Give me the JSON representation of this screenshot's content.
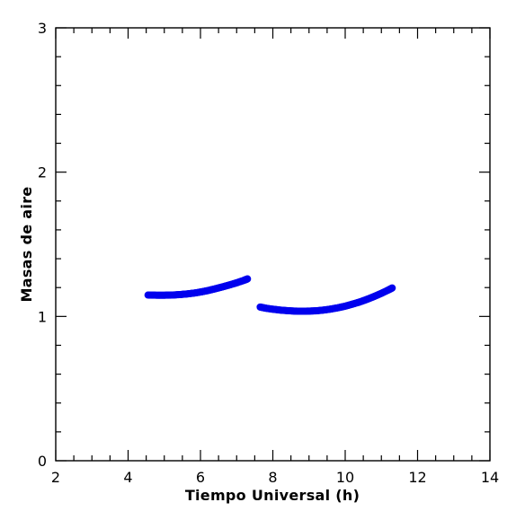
{
  "chart_data": {
    "type": "scatter",
    "xlabel": "Tiempo Universal (h)",
    "ylabel": "Masas de aire",
    "xlim": [
      2,
      14
    ],
    "ylim": [
      0,
      3
    ],
    "x_major_ticks": [
      2,
      4,
      6,
      8,
      10,
      12,
      14
    ],
    "x_minor_step": 0.5,
    "y_major_ticks": [
      0,
      1,
      2,
      3
    ],
    "y_minor_step": 0.2,
    "x_tick_labels": [
      "2",
      "4",
      "6",
      "8",
      "10",
      "12",
      "14"
    ],
    "y_tick_labels": [
      "0",
      "1",
      "2",
      "3"
    ],
    "grid": false,
    "marker_color": "#0000ee",
    "series": [
      {
        "x": [
          4.55,
          4.8,
          5.0,
          5.2,
          5.4,
          5.6,
          5.8,
          6.0,
          6.2,
          6.4,
          6.6,
          6.8,
          7.0,
          7.2,
          7.3
        ],
        "y": [
          1.148,
          1.147,
          1.147,
          1.148,
          1.151,
          1.155,
          1.161,
          1.169,
          1.179,
          1.191,
          1.204,
          1.218,
          1.233,
          1.25,
          1.26
        ]
      },
      {
        "x": [
          7.65,
          7.8,
          8.0,
          8.2,
          8.4,
          8.6,
          8.8,
          9.0,
          9.2,
          9.4,
          9.6,
          9.8,
          10.0,
          10.2,
          10.4,
          10.6,
          10.8,
          11.0,
          11.2,
          11.3
        ],
        "y": [
          1.065,
          1.057,
          1.05,
          1.044,
          1.04,
          1.037,
          1.036,
          1.037,
          1.039,
          1.044,
          1.051,
          1.06,
          1.071,
          1.085,
          1.1,
          1.118,
          1.138,
          1.16,
          1.184,
          1.197
        ]
      }
    ]
  }
}
